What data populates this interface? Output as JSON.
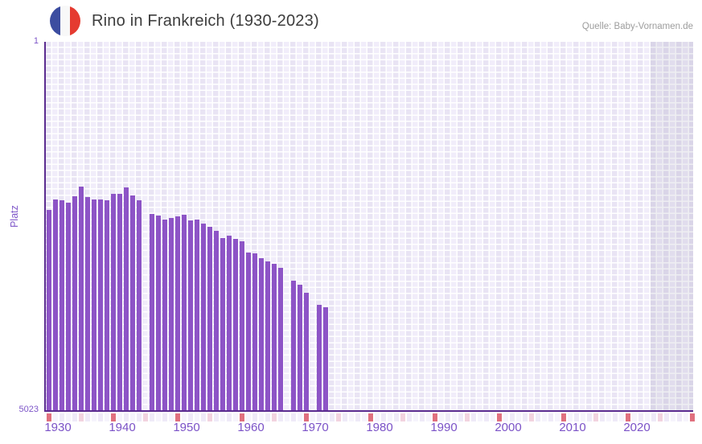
{
  "header": {
    "title": "Rino in Frankreich (1930-2023)",
    "source": "Quelle: Baby-Vornamen.de",
    "flag_icon": "france-flag-roundel",
    "flag_colors": {
      "blue": "#3c4da0",
      "white": "#f8f8f8",
      "red": "#e53b31"
    }
  },
  "chart_data": {
    "type": "bar",
    "title": "Rino in Frankreich (1930-2023)",
    "xlabel": "",
    "ylabel": "Platz",
    "y_axis": {
      "top_label": "1",
      "bottom_label": "5023",
      "min": 1,
      "max": 5023,
      "inverted": true,
      "grid": true
    },
    "x_axis": {
      "first_year": 1930,
      "last_year": 2030,
      "tick_years": [
        1930,
        1940,
        1950,
        1960,
        1970,
        1980,
        1990,
        2000,
        2010,
        2020
      ]
    },
    "legend": "none",
    "series": [
      {
        "name": "Platz",
        "points": [
          {
            "year": 1930,
            "rank": 2290
          },
          {
            "year": 1931,
            "rank": 2140
          },
          {
            "year": 1932,
            "rank": 2155
          },
          {
            "year": 1933,
            "rank": 2185
          },
          {
            "year": 1934,
            "rank": 2105
          },
          {
            "year": 1935,
            "rank": 1975
          },
          {
            "year": 1936,
            "rank": 2115
          },
          {
            "year": 1937,
            "rank": 2150
          },
          {
            "year": 1938,
            "rank": 2150
          },
          {
            "year": 1939,
            "rank": 2160
          },
          {
            "year": 1940,
            "rank": 2070
          },
          {
            "year": 1941,
            "rank": 2070
          },
          {
            "year": 1942,
            "rank": 1985
          },
          {
            "year": 1943,
            "rank": 2095
          },
          {
            "year": 1944,
            "rank": 2155
          },
          {
            "year": 1946,
            "rank": 2345
          },
          {
            "year": 1947,
            "rank": 2360
          },
          {
            "year": 1948,
            "rank": 2420
          },
          {
            "year": 1949,
            "rank": 2400
          },
          {
            "year": 1950,
            "rank": 2380
          },
          {
            "year": 1951,
            "rank": 2350
          },
          {
            "year": 1952,
            "rank": 2430
          },
          {
            "year": 1953,
            "rank": 2420
          },
          {
            "year": 1954,
            "rank": 2475
          },
          {
            "year": 1955,
            "rank": 2520
          },
          {
            "year": 1956,
            "rank": 2570
          },
          {
            "year": 1957,
            "rank": 2675
          },
          {
            "year": 1958,
            "rank": 2635
          },
          {
            "year": 1959,
            "rank": 2685
          },
          {
            "year": 1960,
            "rank": 2710
          },
          {
            "year": 1961,
            "rank": 2865
          },
          {
            "year": 1962,
            "rank": 2875
          },
          {
            "year": 1963,
            "rank": 2940
          },
          {
            "year": 1964,
            "rank": 2985
          },
          {
            "year": 1965,
            "rank": 3025
          },
          {
            "year": 1966,
            "rank": 3070
          },
          {
            "year": 1968,
            "rank": 3250
          },
          {
            "year": 1969,
            "rank": 3305
          },
          {
            "year": 1970,
            "rank": 3415
          },
          {
            "year": 1972,
            "rank": 3580
          },
          {
            "year": 1973,
            "rank": 3615
          }
        ]
      }
    ],
    "missing_years": [
      1945,
      1967,
      1971
    ],
    "colors": {
      "bar": "#8d54c6",
      "axis_line": "#5b2c90",
      "axis_text": "#7b52c7",
      "grid_cell_dark": "#e9e4f4",
      "grid_cell_light": "#f1edfa",
      "strip_decade": "#e0707e",
      "strip_half_decade": "#f2d3df",
      "strip_even": "#efeaf8",
      "strip_odd": "#f6f4fc"
    },
    "layout_hints": {
      "recent_band_from_year": 2024,
      "recent_band_to_right_edge": true
    }
  }
}
